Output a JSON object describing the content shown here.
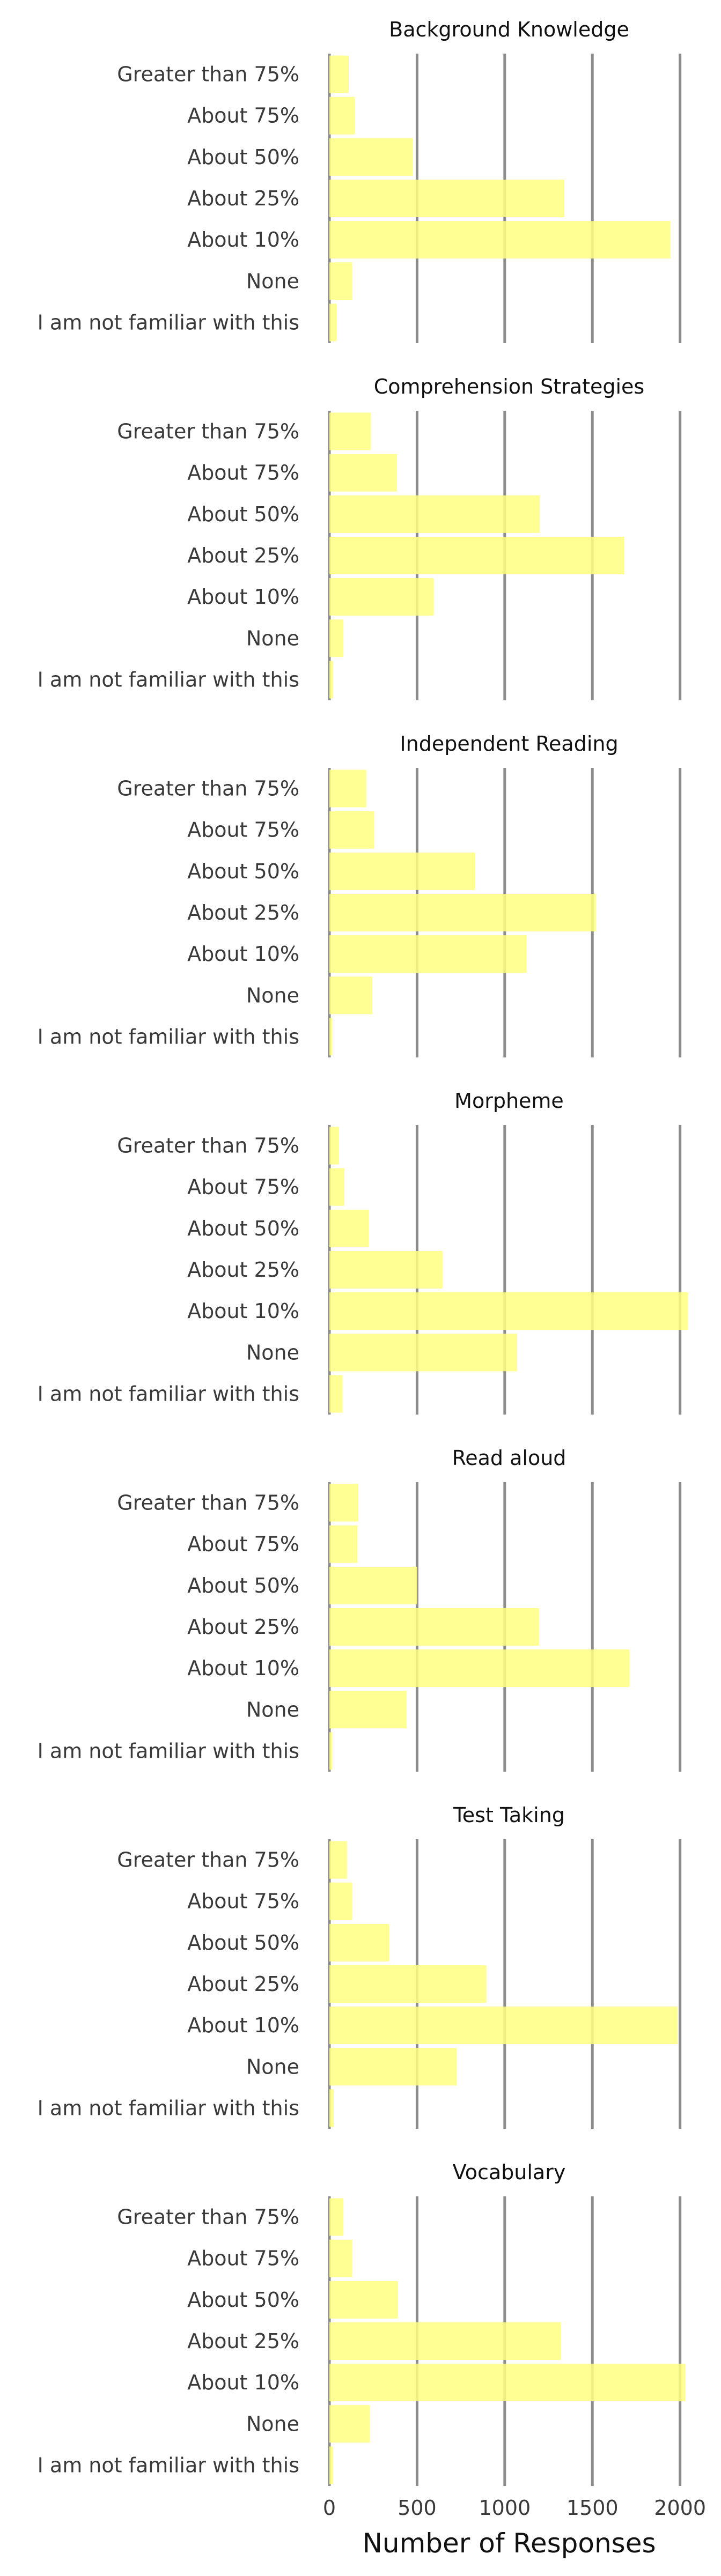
{
  "chart_data": {
    "type": "bar",
    "orientation": "horizontal",
    "categories": [
      "Greater than 75%",
      "About 75%",
      "About 50%",
      "About 25%",
      "About 10%",
      "None",
      "I am not familiar with this"
    ],
    "xlabel": "Number of Responses",
    "xlim": [
      0,
      2050
    ],
    "xticks": [
      0,
      500,
      1000,
      1500,
      2000
    ],
    "grid": "vertical",
    "bar_color": "#ffff80",
    "panels": [
      {
        "title": "Background Knowledge",
        "values": [
          110,
          145,
          475,
          1340,
          1945,
          130,
          40
        ]
      },
      {
        "title": "Comprehension Strategies",
        "values": [
          235,
          385,
          1200,
          1680,
          595,
          80,
          20
        ]
      },
      {
        "title": "Independent Reading",
        "values": [
          210,
          255,
          830,
          1520,
          1125,
          245,
          15
        ]
      },
      {
        "title": "Morpheme",
        "values": [
          55,
          85,
          225,
          645,
          2045,
          1070,
          75
        ]
      },
      {
        "title": "Read aloud",
        "values": [
          165,
          160,
          500,
          1195,
          1710,
          440,
          15
        ]
      },
      {
        "title": "Test Taking",
        "values": [
          100,
          130,
          340,
          895,
          1985,
          725,
          25
        ]
      },
      {
        "title": "Vocabulary",
        "values": [
          80,
          130,
          390,
          1320,
          2030,
          230,
          20
        ]
      }
    ]
  }
}
